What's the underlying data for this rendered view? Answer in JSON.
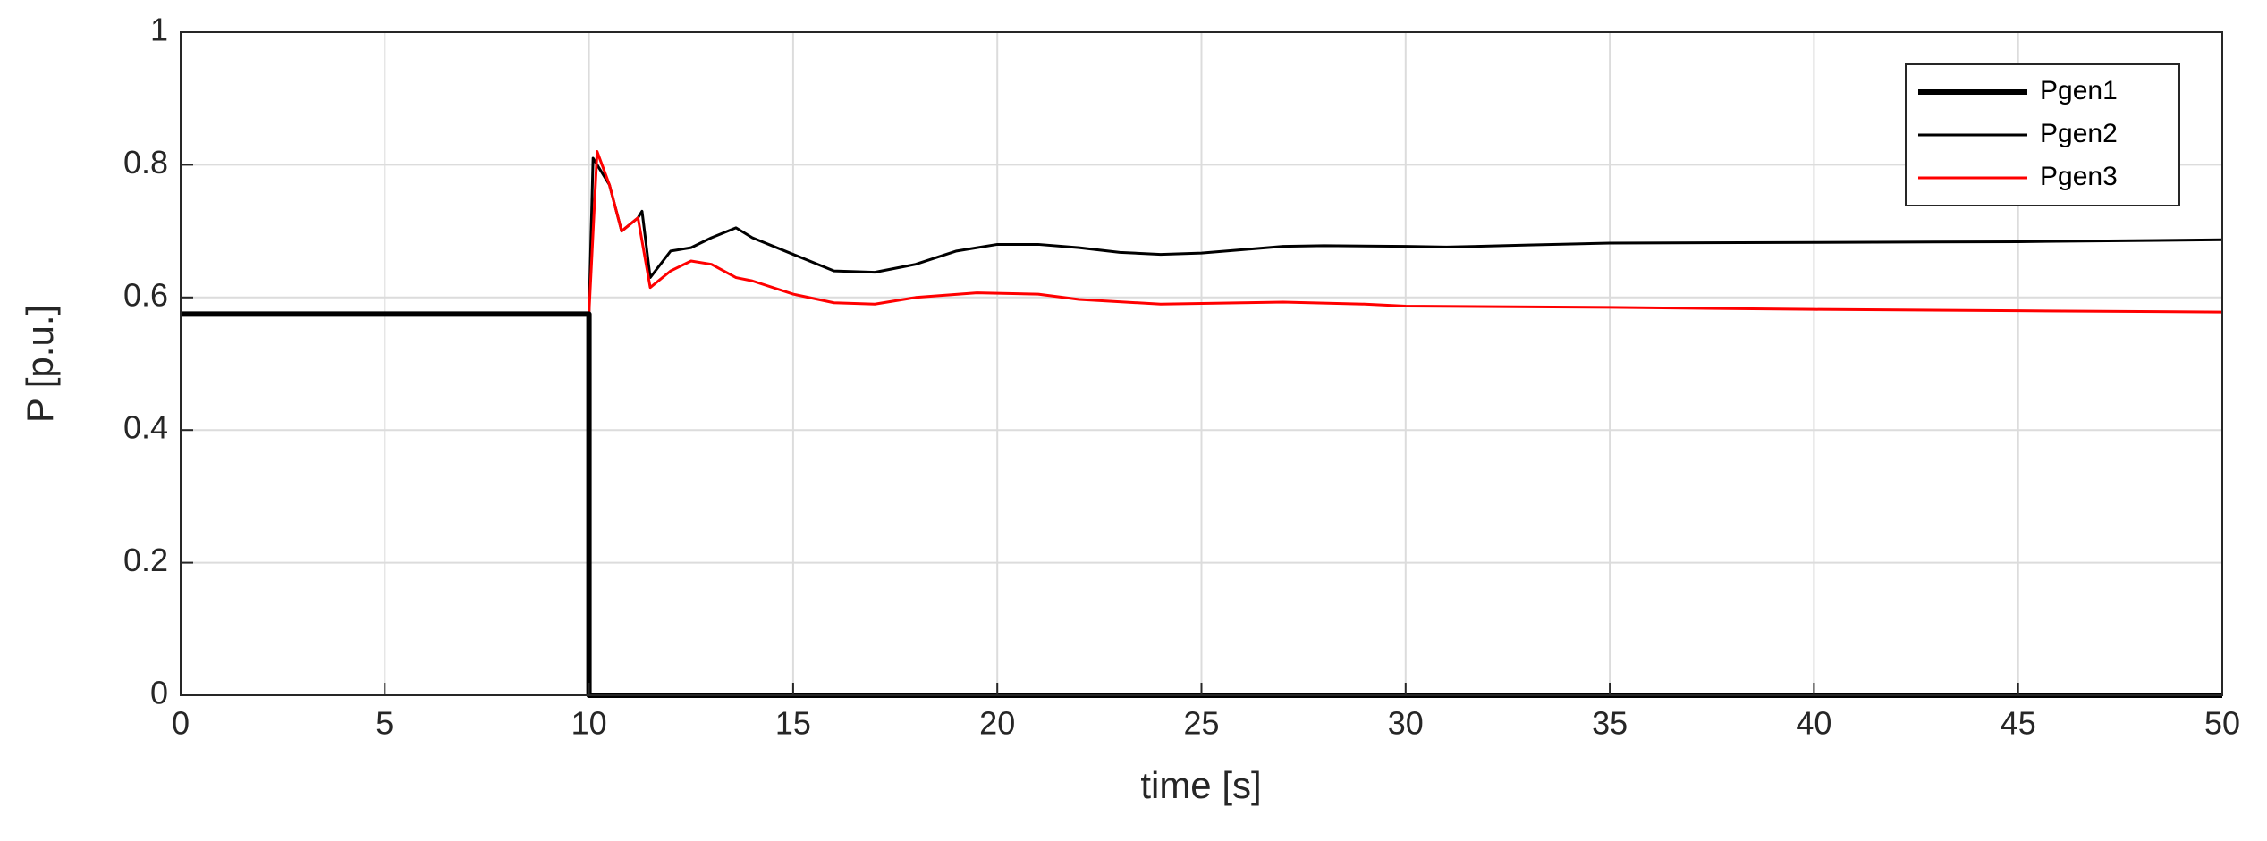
{
  "chart_data": {
    "type": "line",
    "xlabel": "time [s]",
    "ylabel": "P [p.u.]",
    "xlim": [
      0,
      50
    ],
    "ylim": [
      0,
      1
    ],
    "xticks": [
      0,
      5,
      10,
      15,
      20,
      25,
      30,
      35,
      40,
      45,
      50
    ],
    "yticks": [
      0,
      0.2,
      0.4,
      0.6,
      0.8,
      1
    ],
    "grid": true,
    "legend": "upper right",
    "series": [
      {
        "name": "Pgen1",
        "color": "#000000",
        "linewidth": 6,
        "x": [
          0,
          10,
          10,
          50
        ],
        "values": [
          0.575,
          0.575,
          0,
          0
        ]
      },
      {
        "name": "Pgen2",
        "color": "#000000",
        "linewidth": 3,
        "x": [
          0,
          10,
          10.1,
          10.5,
          10.8,
          11.2,
          11.3,
          11.5,
          12,
          12.5,
          13,
          13.6,
          14,
          15,
          16,
          17,
          18,
          19,
          20,
          21,
          22,
          23,
          24,
          25,
          26,
          27,
          28,
          30,
          31,
          33,
          35,
          40,
          45,
          50
        ],
        "values": [
          0.575,
          0.575,
          0.81,
          0.77,
          0.7,
          0.72,
          0.73,
          0.63,
          0.67,
          0.675,
          0.69,
          0.705,
          0.69,
          0.665,
          0.64,
          0.638,
          0.65,
          0.67,
          0.68,
          0.68,
          0.675,
          0.668,
          0.665,
          0.667,
          0.672,
          0.677,
          0.678,
          0.677,
          0.676,
          0.679,
          0.682,
          0.683,
          0.684,
          0.687
        ]
      },
      {
        "name": "Pgen3",
        "color": "#ff0000",
        "linewidth": 3,
        "x": [
          0,
          10,
          10.2,
          10.5,
          10.8,
          11.2,
          11.5,
          12,
          12.5,
          13,
          13.6,
          14,
          15,
          16,
          17,
          18,
          19.5,
          21,
          22,
          24,
          26,
          27,
          29,
          30,
          35,
          40,
          45,
          50
        ],
        "values": [
          0.575,
          0.575,
          0.82,
          0.77,
          0.7,
          0.72,
          0.615,
          0.64,
          0.655,
          0.65,
          0.63,
          0.625,
          0.605,
          0.592,
          0.59,
          0.6,
          0.607,
          0.605,
          0.597,
          0.59,
          0.592,
          0.593,
          0.59,
          0.587,
          0.585,
          0.582,
          0.58,
          0.578
        ]
      }
    ]
  }
}
